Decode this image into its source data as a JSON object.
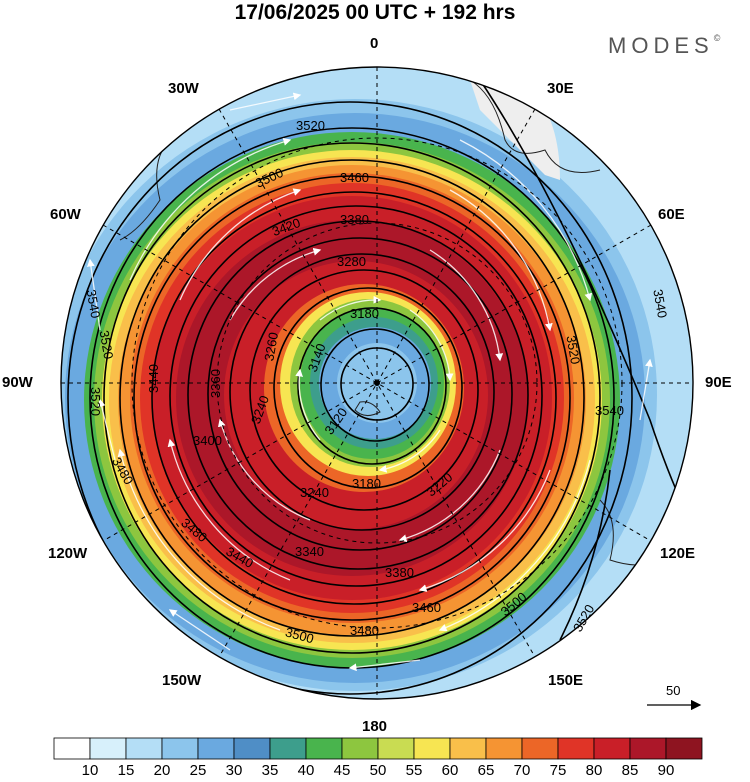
{
  "title": "17/06/2025  00 UTC  + 192 hrs",
  "brand": "MODES",
  "brand_mark": "©",
  "longitude_labels": {
    "n": "0",
    "ne": "30E",
    "e1": "60E",
    "e": "90E",
    "se1": "120E",
    "se": "150E",
    "s": "180",
    "sw": "150W",
    "sw1": "120W",
    "w": "90W",
    "nw1": "60W",
    "nw": "30W"
  },
  "contour_labels": [
    "3520",
    "3500",
    "3460",
    "3420",
    "3380",
    "3280",
    "3180",
    "3140",
    "3120",
    "3240",
    "3260",
    "3340",
    "3400",
    "3480",
    "3440",
    "3540",
    "3360",
    "3200",
    "3220"
  ],
  "colorbar": {
    "ticks": [
      "10",
      "15",
      "20",
      "25",
      "30",
      "35",
      "40",
      "45",
      "50",
      "55",
      "60",
      "65",
      "70",
      "75",
      "80",
      "85",
      "90"
    ],
    "colors": [
      "#ffffff",
      "#d7f0fb",
      "#b4def6",
      "#8cc5ec",
      "#6aa9e0",
      "#4f8ec6",
      "#3d9e8c",
      "#49b44d",
      "#8dc63f",
      "#c9dc52",
      "#f7e552",
      "#f9bf4a",
      "#f59433",
      "#ec6627",
      "#e03427",
      "#c91f28",
      "#ac1729",
      "#8e1420"
    ]
  },
  "reference_vector": "50"
}
